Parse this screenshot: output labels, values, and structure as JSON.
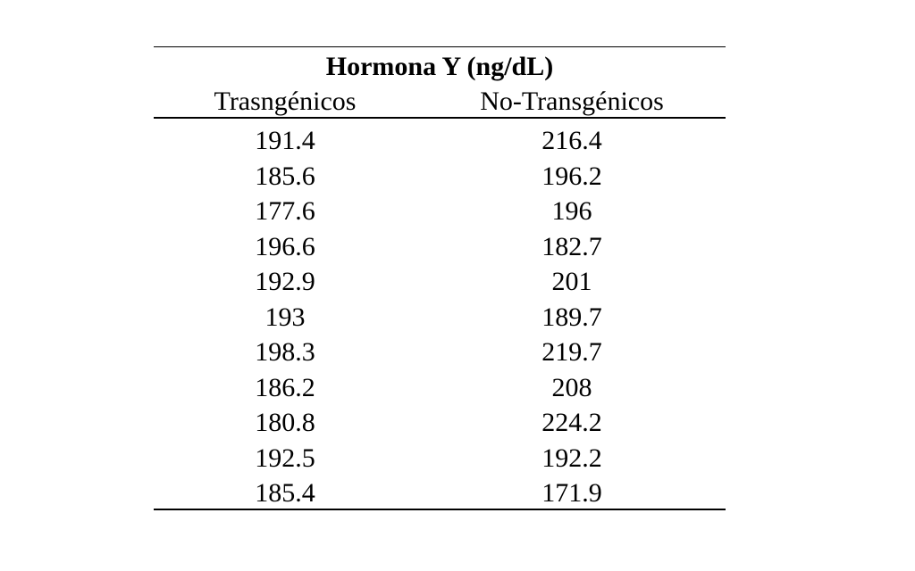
{
  "table": {
    "title": "Hormona Y (ng/dL)",
    "columns": [
      "Trasngénicos",
      "No-Transgénicos"
    ],
    "rows": [
      [
        191.4,
        216.4
      ],
      [
        185.6,
        196.2
      ],
      [
        177.6,
        196
      ],
      [
        196.6,
        182.7
      ],
      [
        192.9,
        201
      ],
      [
        193,
        189.7
      ],
      [
        198.3,
        219.7
      ],
      [
        186.2,
        208
      ],
      [
        180.8,
        224.2
      ],
      [
        192.5,
        192.2
      ],
      [
        185.4,
        171.9
      ]
    ]
  }
}
